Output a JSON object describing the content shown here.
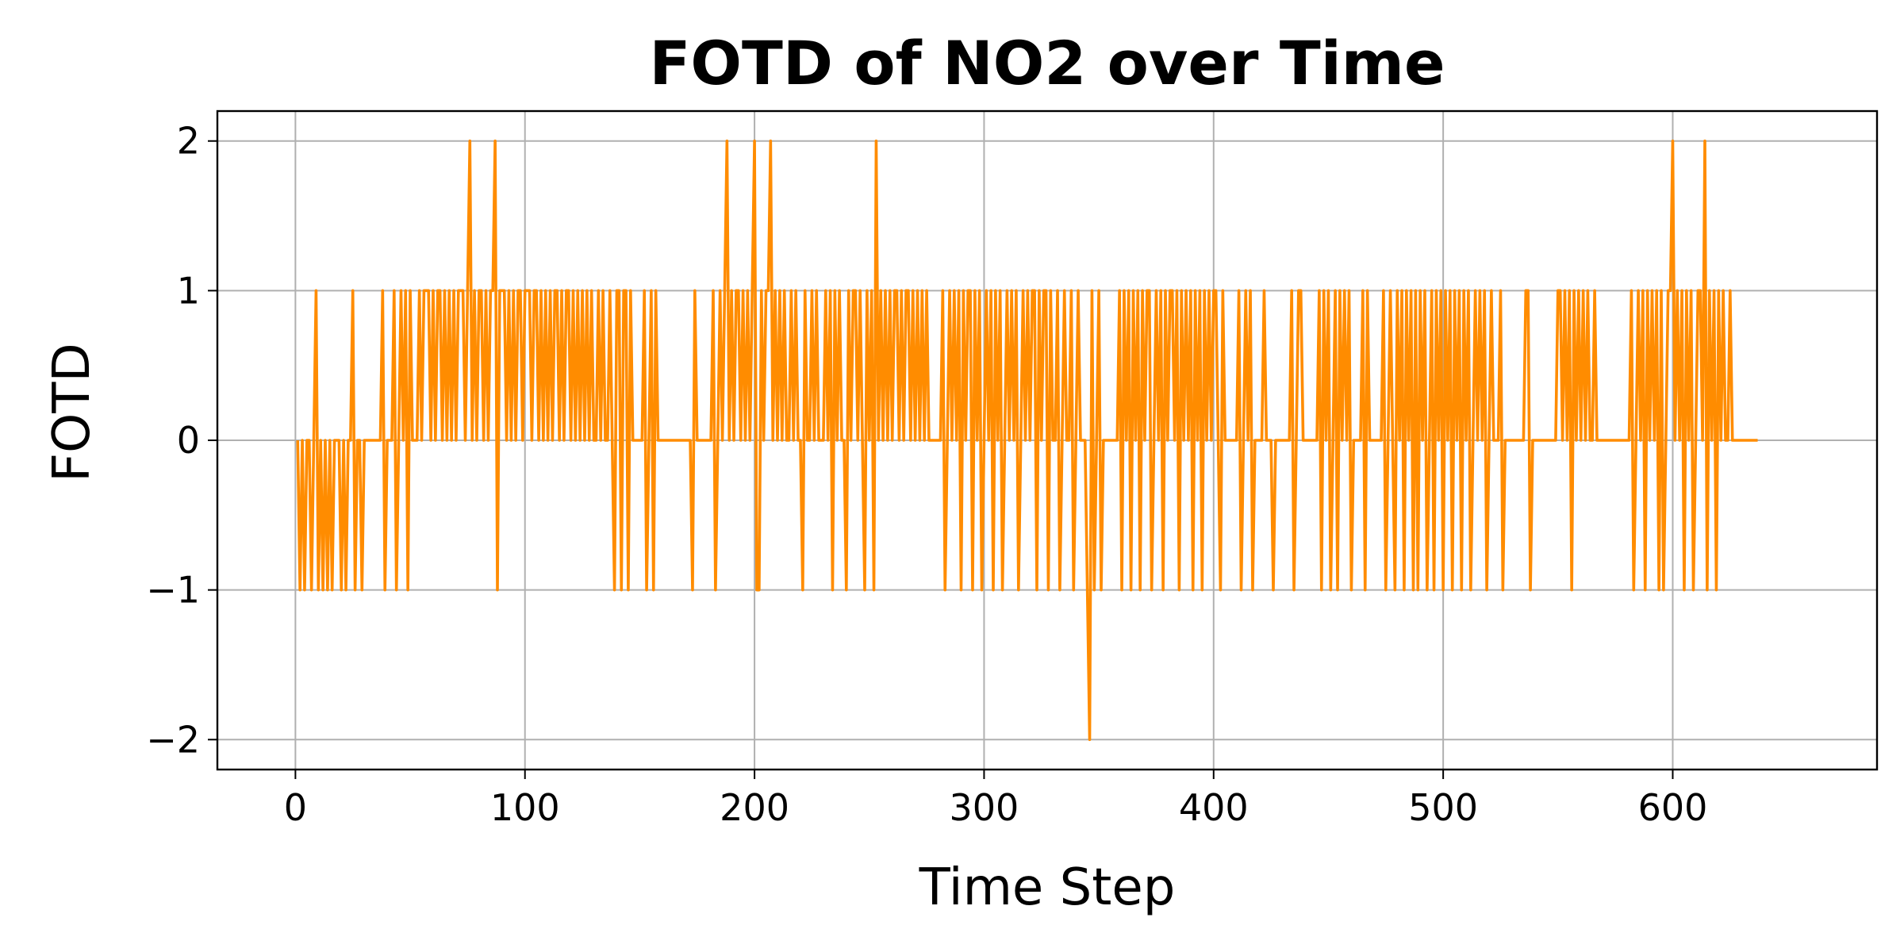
{
  "chart_data": {
    "type": "line",
    "title": "FOTD of NO2 over Time",
    "xlabel": "Time Step",
    "ylabel": "FOTD",
    "xlim": [
      -34,
      689
    ],
    "ylim": [
      -2.2,
      2.2
    ],
    "xticks": [
      0,
      100,
      200,
      300,
      400,
      500,
      600
    ],
    "xtick_labels": [
      "0",
      "100",
      "200",
      "300",
      "400",
      "500",
      "600"
    ],
    "yticks": [
      -2,
      -1,
      0,
      1,
      2
    ],
    "ytick_labels": [
      "−2",
      "−1",
      "0",
      "1",
      "2"
    ],
    "grid": true,
    "legend": "none",
    "colors": {
      "line": "#ff8c00",
      "grid": "#b0b0b0",
      "axes": "#000000"
    },
    "series": [
      {
        "x_start": 1,
        "x_step": 1,
        "values": [
          0,
          -1,
          0,
          -1,
          0,
          0,
          -1,
          0,
          1,
          -1,
          0,
          -1,
          0,
          -1,
          0,
          -1,
          0,
          0,
          0,
          -1,
          0,
          -1,
          0,
          0,
          1,
          -1,
          0,
          0,
          -1,
          0,
          0,
          0,
          0,
          0,
          0,
          0,
          0,
          1,
          -1,
          0,
          0,
          0,
          1,
          -1,
          0,
          1,
          0,
          1,
          -1,
          1,
          0,
          0,
          0,
          1,
          0,
          1,
          1,
          1,
          0,
          1,
          0,
          1,
          1,
          0,
          1,
          0,
          1,
          0,
          1,
          0,
          1,
          1,
          1,
          0,
          1,
          2,
          0,
          1,
          0,
          1,
          1,
          0,
          1,
          0,
          1,
          1,
          2,
          -1,
          1,
          1,
          1,
          0,
          1,
          0,
          1,
          0,
          1,
          1,
          0,
          1,
          1,
          1,
          0,
          1,
          1,
          0,
          1,
          0,
          1,
          0,
          1,
          0,
          1,
          1,
          0,
          1,
          0,
          1,
          1,
          0,
          1,
          0,
          1,
          0,
          1,
          0,
          1,
          0,
          1,
          0,
          0,
          1,
          0,
          1,
          0,
          0,
          1,
          0,
          -1,
          1,
          1,
          -1,
          1,
          1,
          -1,
          1,
          0,
          0,
          0,
          0,
          0,
          1,
          -1,
          0,
          1,
          -1,
          1,
          0,
          0,
          0,
          0,
          0,
          0,
          0,
          0,
          0,
          0,
          0,
          0,
          0,
          0,
          0,
          -1,
          1,
          0,
          0,
          0,
          0,
          0,
          0,
          0,
          1,
          -1,
          0,
          1,
          0,
          1,
          2,
          0,
          1,
          0,
          1,
          1,
          0,
          1,
          0,
          1,
          0,
          1,
          2,
          -1,
          -1,
          1,
          0,
          1,
          1,
          2,
          0,
          1,
          0,
          1,
          0,
          1,
          0,
          0,
          1,
          0,
          1,
          0,
          0,
          -1,
          1,
          0,
          0,
          1,
          0,
          1,
          0,
          0,
          0,
          1,
          0,
          1,
          -1,
          1,
          0,
          1,
          0,
          0,
          -1,
          1,
          0,
          1,
          1,
          0,
          1,
          0,
          -1,
          1,
          0,
          1,
          -1,
          2,
          0,
          1,
          0,
          1,
          0,
          1,
          0,
          1,
          1,
          0,
          1,
          0,
          1,
          1,
          0,
          1,
          0,
          1,
          0,
          1,
          0,
          1,
          0,
          0,
          0,
          0,
          0,
          0,
          1,
          -1,
          0,
          1,
          0,
          1,
          0,
          1,
          -1,
          1,
          0,
          1,
          1,
          -1,
          1,
          0,
          1,
          -1,
          0,
          1,
          0,
          1,
          -1,
          1,
          0,
          1,
          -1,
          0,
          1,
          0,
          1,
          0,
          1,
          -1,
          0,
          1,
          0,
          1,
          0,
          1,
          1,
          -1,
          1,
          0,
          1,
          1,
          -1,
          1,
          0,
          0,
          1,
          -1,
          0,
          1,
          0,
          0,
          1,
          -1,
          0,
          1,
          0,
          0,
          0,
          -1,
          -2,
          1,
          -1,
          0,
          1,
          -1,
          0,
          0,
          0,
          0,
          0,
          0,
          0,
          1,
          -1,
          1,
          0,
          1,
          -1,
          1,
          0,
          1,
          -1,
          1,
          0,
          1,
          1,
          -1,
          0,
          1,
          0,
          1,
          -1,
          1,
          0,
          1,
          1,
          0,
          1,
          -1,
          1,
          0,
          1,
          0,
          1,
          -1,
          1,
          0,
          1,
          -1,
          1,
          0,
          1,
          0,
          1,
          1,
          0,
          -1,
          1,
          0,
          0,
          0,
          0,
          0,
          0,
          1,
          -1,
          0,
          1,
          0,
          1,
          -1,
          0,
          0,
          0,
          0,
          1,
          0,
          0,
          0,
          -1,
          0,
          0,
          0,
          0,
          0,
          0,
          0,
          1,
          -1,
          0,
          1,
          1,
          0,
          0,
          0,
          0,
          0,
          0,
          0,
          1,
          -1,
          1,
          0,
          1,
          -1,
          0,
          1,
          -1,
          1,
          0,
          1,
          0,
          1,
          -1,
          0,
          0,
          0,
          0,
          1,
          -1,
          1,
          0,
          0,
          0,
          0,
          0,
          0,
          1,
          -1,
          0,
          1,
          0,
          -1,
          1,
          0,
          1,
          -1,
          1,
          0,
          1,
          -1,
          1,
          -1,
          1,
          0,
          1,
          -1,
          0,
          1,
          -1,
          1,
          0,
          1,
          -1,
          1,
          0,
          1,
          -1,
          1,
          0,
          1,
          -1,
          1,
          0,
          1,
          -1,
          0,
          1,
          0,
          1,
          0,
          1,
          -1,
          0,
          1,
          0,
          0,
          0,
          1,
          -1,
          0,
          0,
          0,
          0,
          0,
          0,
          0,
          0,
          0,
          1,
          1,
          -1,
          0,
          0,
          0,
          0,
          0,
          0,
          0,
          0,
          0,
          0,
          0,
          1,
          1,
          0,
          1,
          0,
          1,
          -1,
          1,
          0,
          1,
          0,
          1,
          0,
          1,
          0,
          0,
          1,
          0,
          0,
          0,
          0,
          0,
          0,
          0,
          0,
          0,
          0,
          0,
          0,
          0,
          0,
          0,
          1,
          -1,
          0,
          1,
          0,
          1,
          -1,
          1,
          0,
          1,
          0,
          1,
          -1,
          1,
          -1,
          0,
          1,
          1,
          2,
          0,
          1,
          0,
          1,
          -1,
          1,
          0,
          1,
          -1,
          0,
          1,
          1,
          0,
          2,
          -1,
          1,
          0,
          1,
          -1,
          1,
          0,
          1,
          0,
          0,
          1,
          0,
          0,
          0,
          0,
          0,
          0,
          0,
          0,
          0,
          0,
          0,
          0
        ]
      }
    ]
  }
}
